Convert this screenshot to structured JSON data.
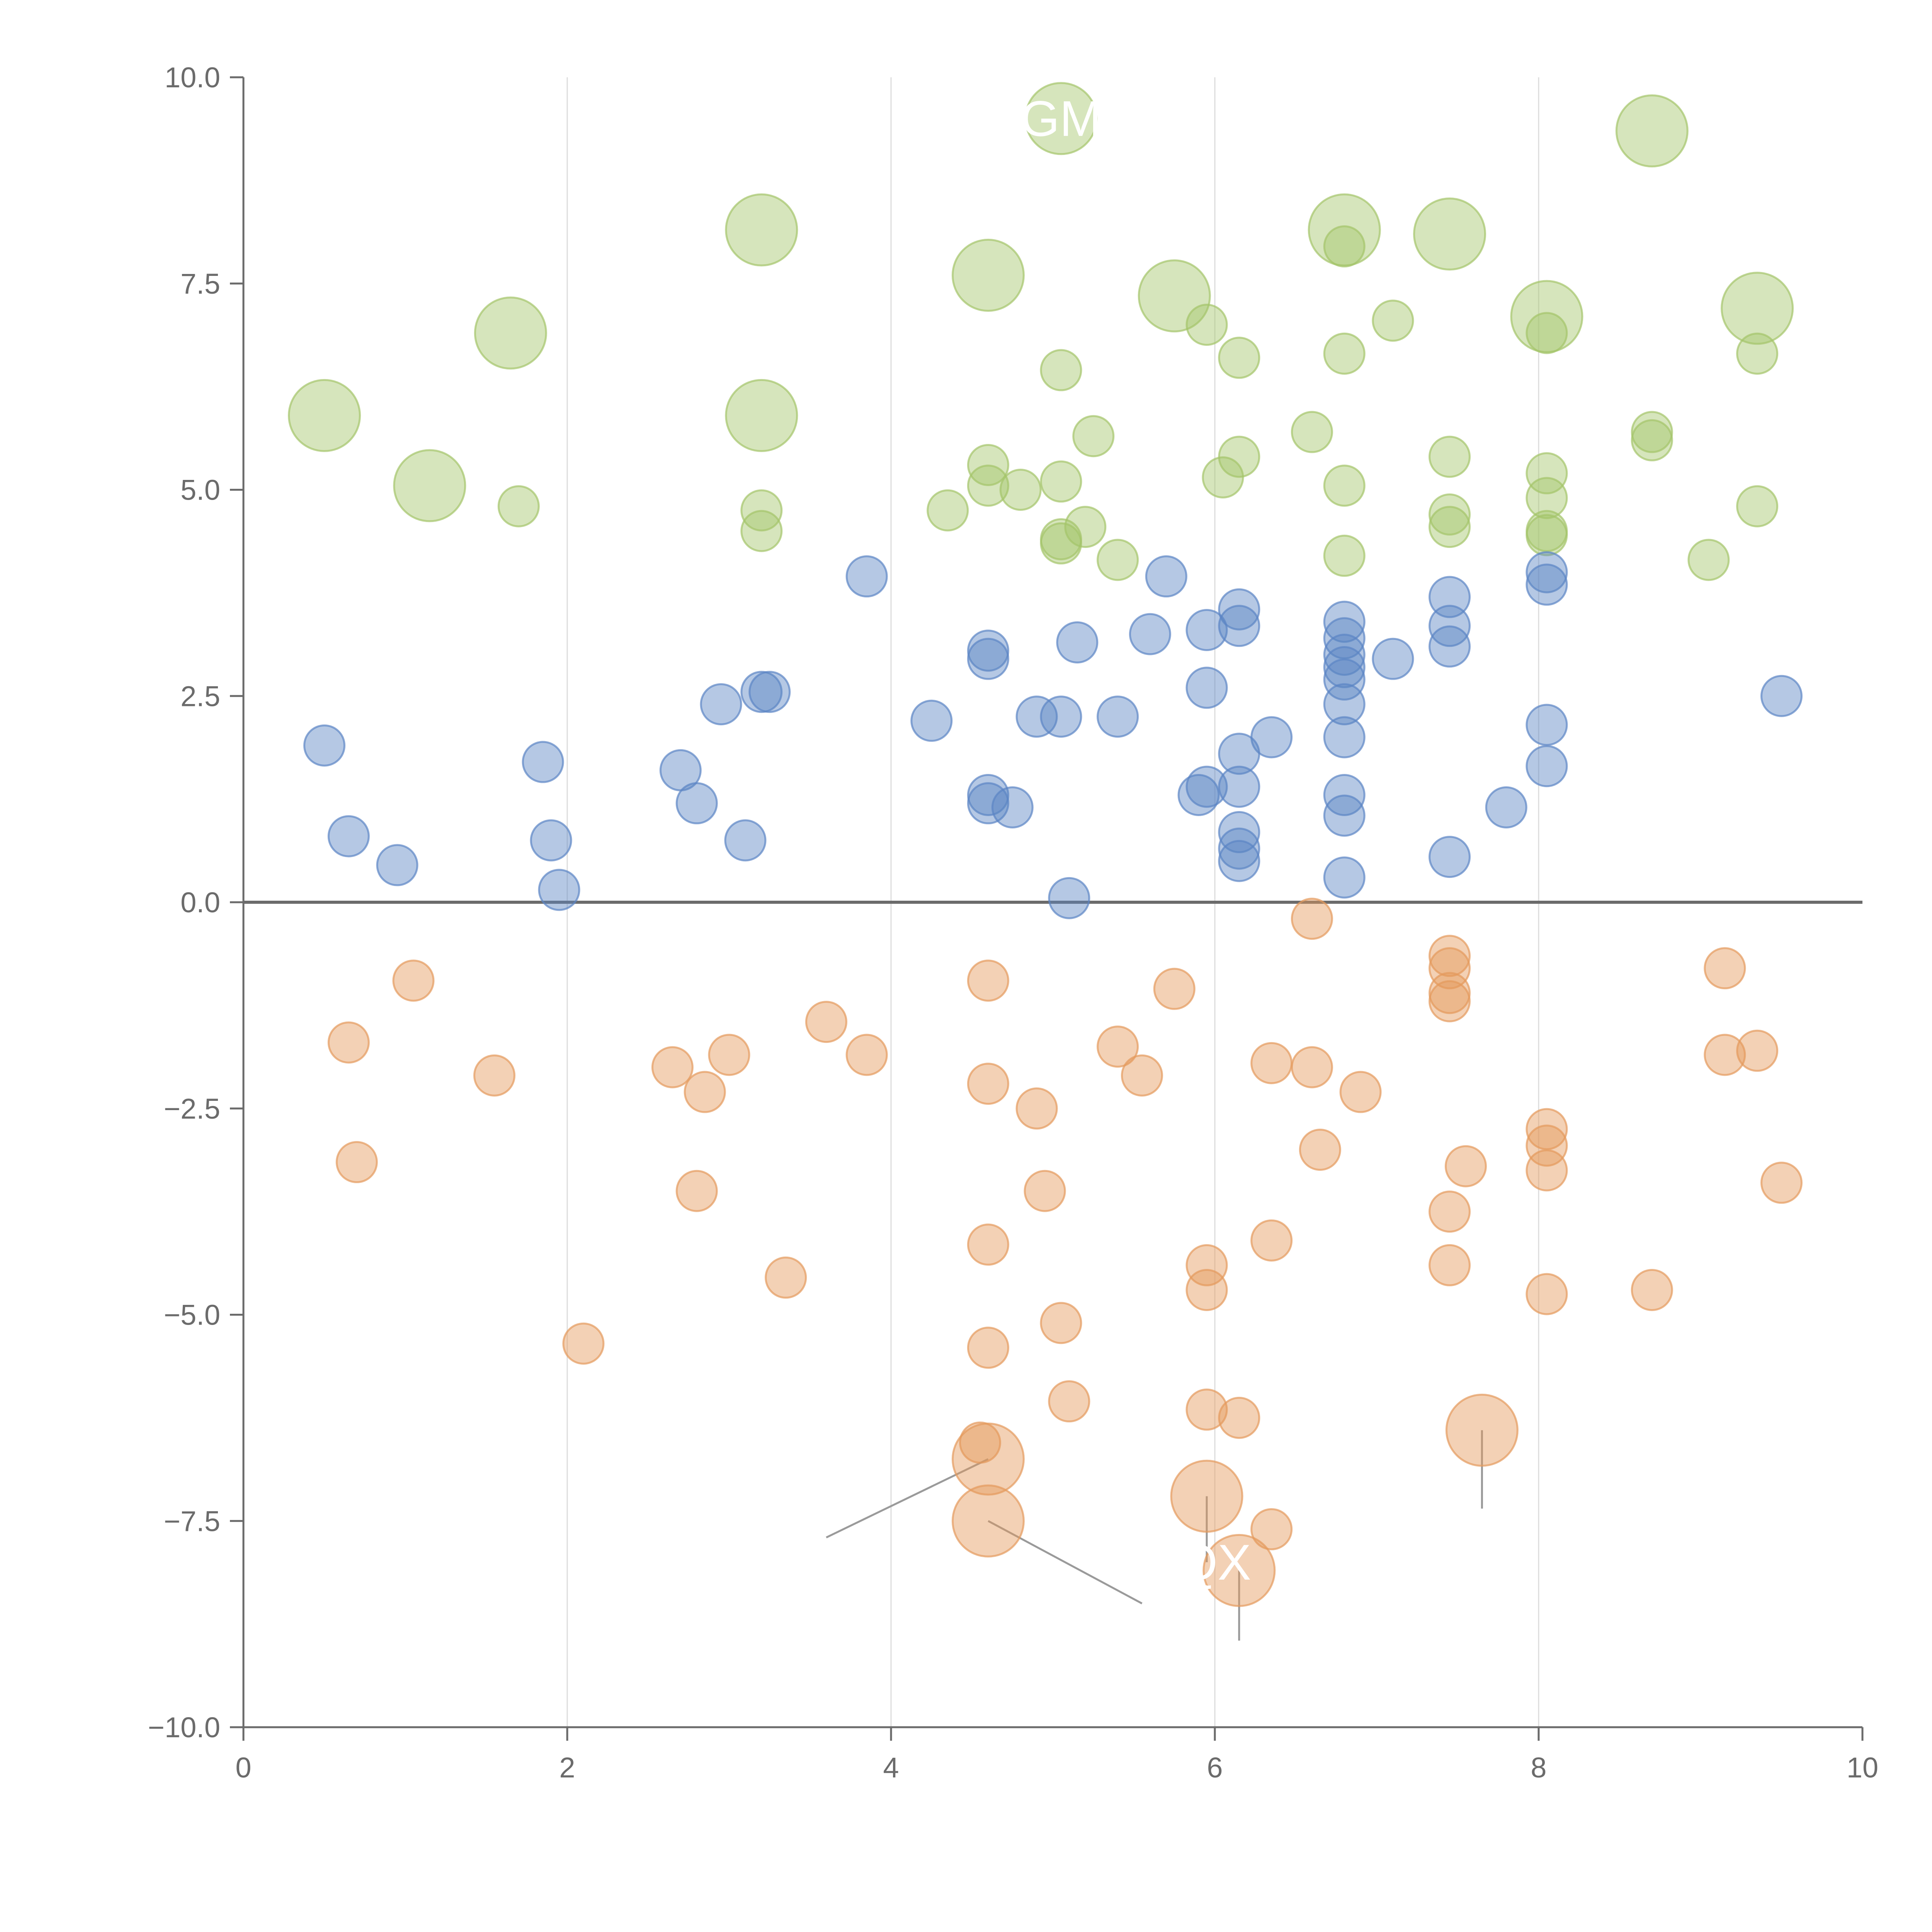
{
  "chart_data": {
    "type": "scatter",
    "title": "",
    "xlabel": "",
    "ylabel": "",
    "xlim": [
      0,
      10
    ],
    "ylim": [
      -10,
      10
    ],
    "xticks": [
      0,
      2,
      4,
      6,
      8,
      10
    ],
    "yticks": [
      -10,
      -7.5,
      -5,
      -2.5,
      0,
      2.5,
      5,
      7.5,
      10
    ],
    "xtick_labels": [
      "0",
      "2",
      "4",
      "6",
      "8",
      "10"
    ],
    "ytick_labels": [
      "−10.0",
      "−7.5",
      "−5.0",
      "−2.5",
      "0.0",
      "2.5",
      "5.0",
      "7.5",
      "10.0"
    ],
    "grid": "vertical",
    "zero_line": true,
    "colors": {
      "green": "#a4c56a",
      "blue": "#5b84c4",
      "orange": "#e49a5c",
      "axis": "#6b6b6b",
      "grid": "#dcdcdc"
    },
    "labels": [
      {
        "text": "GM",
        "x": 5.05,
        "y": 9.5
      },
      {
        "text": "QX",
        "x": 6.0,
        "y": -8.0
      }
    ],
    "series": [
      {
        "name": "green",
        "points": [
          [
            5.05,
            9.5,
            1
          ],
          [
            8.7,
            9.35,
            1
          ],
          [
            3.2,
            8.15,
            1
          ],
          [
            6.8,
            8.15,
            1
          ],
          [
            7.45,
            8.1,
            1
          ],
          [
            4.6,
            7.6,
            1
          ],
          [
            5.75,
            7.35,
            1
          ],
          [
            8.05,
            7.1,
            1
          ],
          [
            9.35,
            7.2,
            1
          ],
          [
            1.65,
            6.9,
            1
          ],
          [
            0.5,
            5.9,
            1
          ],
          [
            3.2,
            5.9,
            1
          ],
          [
            1.15,
            5.05,
            1
          ],
          [
            6.8,
            7.95,
            0
          ],
          [
            5.95,
            7.0,
            0
          ],
          [
            7.1,
            7.05,
            0
          ],
          [
            6.15,
            6.6,
            0
          ],
          [
            6.8,
            6.65,
            0
          ],
          [
            5.05,
            6.45,
            0
          ],
          [
            9.35,
            6.65,
            0
          ],
          [
            8.05,
            6.9,
            0
          ],
          [
            5.25,
            5.65,
            0
          ],
          [
            6.6,
            5.7,
            0
          ],
          [
            8.7,
            5.7,
            0
          ],
          [
            8.7,
            5.6,
            0
          ],
          [
            4.6,
            5.3,
            0
          ],
          [
            6.15,
            5.4,
            0
          ],
          [
            7.45,
            5.4,
            0
          ],
          [
            6.05,
            5.15,
            0
          ],
          [
            4.6,
            5.05,
            0
          ],
          [
            4.8,
            5.0,
            0
          ],
          [
            5.05,
            5.1,
            0
          ],
          [
            6.8,
            5.05,
            0
          ],
          [
            8.05,
            5.2,
            0
          ],
          [
            1.7,
            4.8,
            0
          ],
          [
            3.2,
            4.75,
            0
          ],
          [
            4.35,
            4.75,
            0
          ],
          [
            7.45,
            4.7,
            0
          ],
          [
            7.45,
            4.55,
            0
          ],
          [
            8.05,
            4.9,
            0
          ],
          [
            9.35,
            4.8,
            0
          ],
          [
            3.2,
            4.5,
            0
          ],
          [
            5.2,
            4.55,
            0
          ],
          [
            5.05,
            4.4,
            0
          ],
          [
            5.05,
            4.35,
            0
          ],
          [
            8.05,
            4.5,
            0
          ],
          [
            8.05,
            4.45,
            0
          ],
          [
            5.4,
            4.15,
            0
          ],
          [
            6.8,
            4.2,
            0
          ],
          [
            9.05,
            4.15,
            0
          ]
        ]
      },
      {
        "name": "blue",
        "points": [
          [
            3.85,
            3.95,
            0
          ],
          [
            5.7,
            3.95,
            0
          ],
          [
            8.05,
            4.0,
            0
          ],
          [
            8.05,
            3.85,
            0
          ],
          [
            7.45,
            3.7,
            0
          ],
          [
            6.15,
            3.55,
            0
          ],
          [
            6.8,
            3.4,
            0
          ],
          [
            5.95,
            3.3,
            0
          ],
          [
            6.15,
            3.35,
            0
          ],
          [
            7.45,
            3.35,
            0
          ],
          [
            5.15,
            3.15,
            0
          ],
          [
            5.6,
            3.25,
            0
          ],
          [
            6.8,
            3.2,
            0
          ],
          [
            7.45,
            3.1,
            0
          ],
          [
            4.6,
            3.05,
            0
          ],
          [
            4.6,
            2.95,
            0
          ],
          [
            7.1,
            2.95,
            0
          ],
          [
            6.8,
            3.0,
            0
          ],
          [
            6.8,
            2.85,
            0
          ],
          [
            6.8,
            2.7,
            0
          ],
          [
            3.2,
            2.55,
            0
          ],
          [
            3.25,
            2.55,
            0
          ],
          [
            5.95,
            2.6,
            0
          ],
          [
            9.5,
            2.5,
            0
          ],
          [
            2.95,
            2.4,
            0
          ],
          [
            6.8,
            2.4,
            0
          ],
          [
            4.25,
            2.2,
            0
          ],
          [
            4.9,
            2.25,
            0
          ],
          [
            5.05,
            2.25,
            0
          ],
          [
            5.4,
            2.25,
            0
          ],
          [
            8.05,
            2.15,
            0
          ],
          [
            6.35,
            2.0,
            0
          ],
          [
            6.8,
            2.0,
            0
          ],
          [
            0.5,
            1.9,
            0
          ],
          [
            6.15,
            1.8,
            0
          ],
          [
            1.85,
            1.7,
            0
          ],
          [
            8.05,
            1.65,
            0
          ],
          [
            2.7,
            1.6,
            0
          ],
          [
            4.6,
            1.3,
            0
          ],
          [
            4.6,
            1.2,
            0
          ],
          [
            4.75,
            1.15,
            0
          ],
          [
            5.9,
            1.3,
            0
          ],
          [
            5.95,
            1.4,
            0
          ],
          [
            6.15,
            1.4,
            0
          ],
          [
            6.8,
            1.3,
            0
          ],
          [
            6.8,
            1.05,
            0
          ],
          [
            7.8,
            1.15,
            0
          ],
          [
            2.8,
            1.2,
            0
          ],
          [
            0.65,
            0.8,
            0
          ],
          [
            1.9,
            0.75,
            0
          ],
          [
            3.1,
            0.75,
            0
          ],
          [
            6.15,
            0.85,
            0
          ],
          [
            6.15,
            0.65,
            0
          ],
          [
            6.15,
            0.5,
            0
          ],
          [
            7.45,
            0.55,
            0
          ],
          [
            0.95,
            0.45,
            0
          ],
          [
            6.8,
            0.3,
            0
          ],
          [
            1.95,
            0.15,
            0
          ],
          [
            5.1,
            0.05,
            0
          ]
        ]
      },
      {
        "name": "orange",
        "points": [
          [
            6.6,
            -0.2,
            0
          ],
          [
            7.45,
            -0.65,
            0
          ],
          [
            7.45,
            -0.8,
            0
          ],
          [
            9.15,
            -0.8,
            0
          ],
          [
            1.05,
            -0.95,
            0
          ],
          [
            4.6,
            -0.95,
            0
          ],
          [
            5.75,
            -1.05,
            0
          ],
          [
            7.45,
            -1.1,
            0
          ],
          [
            7.45,
            -1.2,
            0
          ],
          [
            3.6,
            -1.45,
            0
          ],
          [
            0.65,
            -1.7,
            0
          ],
          [
            5.4,
            -1.75,
            0
          ],
          [
            9.15,
            -1.85,
            0
          ],
          [
            9.35,
            -1.8,
            0
          ],
          [
            3.0,
            -1.85,
            0
          ],
          [
            3.85,
            -1.85,
            0
          ],
          [
            6.35,
            -1.95,
            0
          ],
          [
            6.6,
            -2.0,
            0
          ],
          [
            2.65,
            -2.0,
            0
          ],
          [
            1.55,
            -2.1,
            0
          ],
          [
            5.55,
            -2.1,
            0
          ],
          [
            4.6,
            -2.2,
            0
          ],
          [
            2.85,
            -2.3,
            0
          ],
          [
            6.9,
            -2.3,
            0
          ],
          [
            4.9,
            -2.5,
            0
          ],
          [
            8.05,
            -2.75,
            0
          ],
          [
            8.05,
            -2.95,
            0
          ],
          [
            6.65,
            -3.0,
            0
          ],
          [
            0.7,
            -3.15,
            0
          ],
          [
            7.55,
            -3.2,
            0
          ],
          [
            8.05,
            -3.25,
            0
          ],
          [
            9.5,
            -3.4,
            0
          ],
          [
            2.8,
            -3.5,
            0
          ],
          [
            4.95,
            -3.5,
            0
          ],
          [
            7.45,
            -3.75,
            0
          ],
          [
            6.35,
            -4.1,
            0
          ],
          [
            4.6,
            -4.15,
            0
          ],
          [
            7.45,
            -4.4,
            0
          ],
          [
            5.95,
            -4.4,
            0
          ],
          [
            3.35,
            -4.55,
            0
          ],
          [
            5.95,
            -4.7,
            0
          ],
          [
            8.7,
            -4.7,
            0
          ],
          [
            8.05,
            -4.75,
            0
          ],
          [
            5.05,
            -5.1,
            0
          ],
          [
            2.1,
            -5.35,
            0
          ],
          [
            4.6,
            -5.4,
            0
          ],
          [
            5.1,
            -6.05,
            0
          ],
          [
            5.95,
            -6.15,
            0
          ],
          [
            6.15,
            -6.25,
            0
          ],
          [
            4.55,
            -6.55,
            0
          ],
          [
            6.35,
            -7.6,
            0
          ],
          [
            7.65,
            -6.4,
            1
          ],
          [
            4.6,
            -6.75,
            1
          ],
          [
            5.95,
            -7.2,
            1
          ],
          [
            4.6,
            -7.5,
            1
          ],
          [
            6.15,
            -8.1,
            1
          ]
        ]
      }
    ]
  }
}
